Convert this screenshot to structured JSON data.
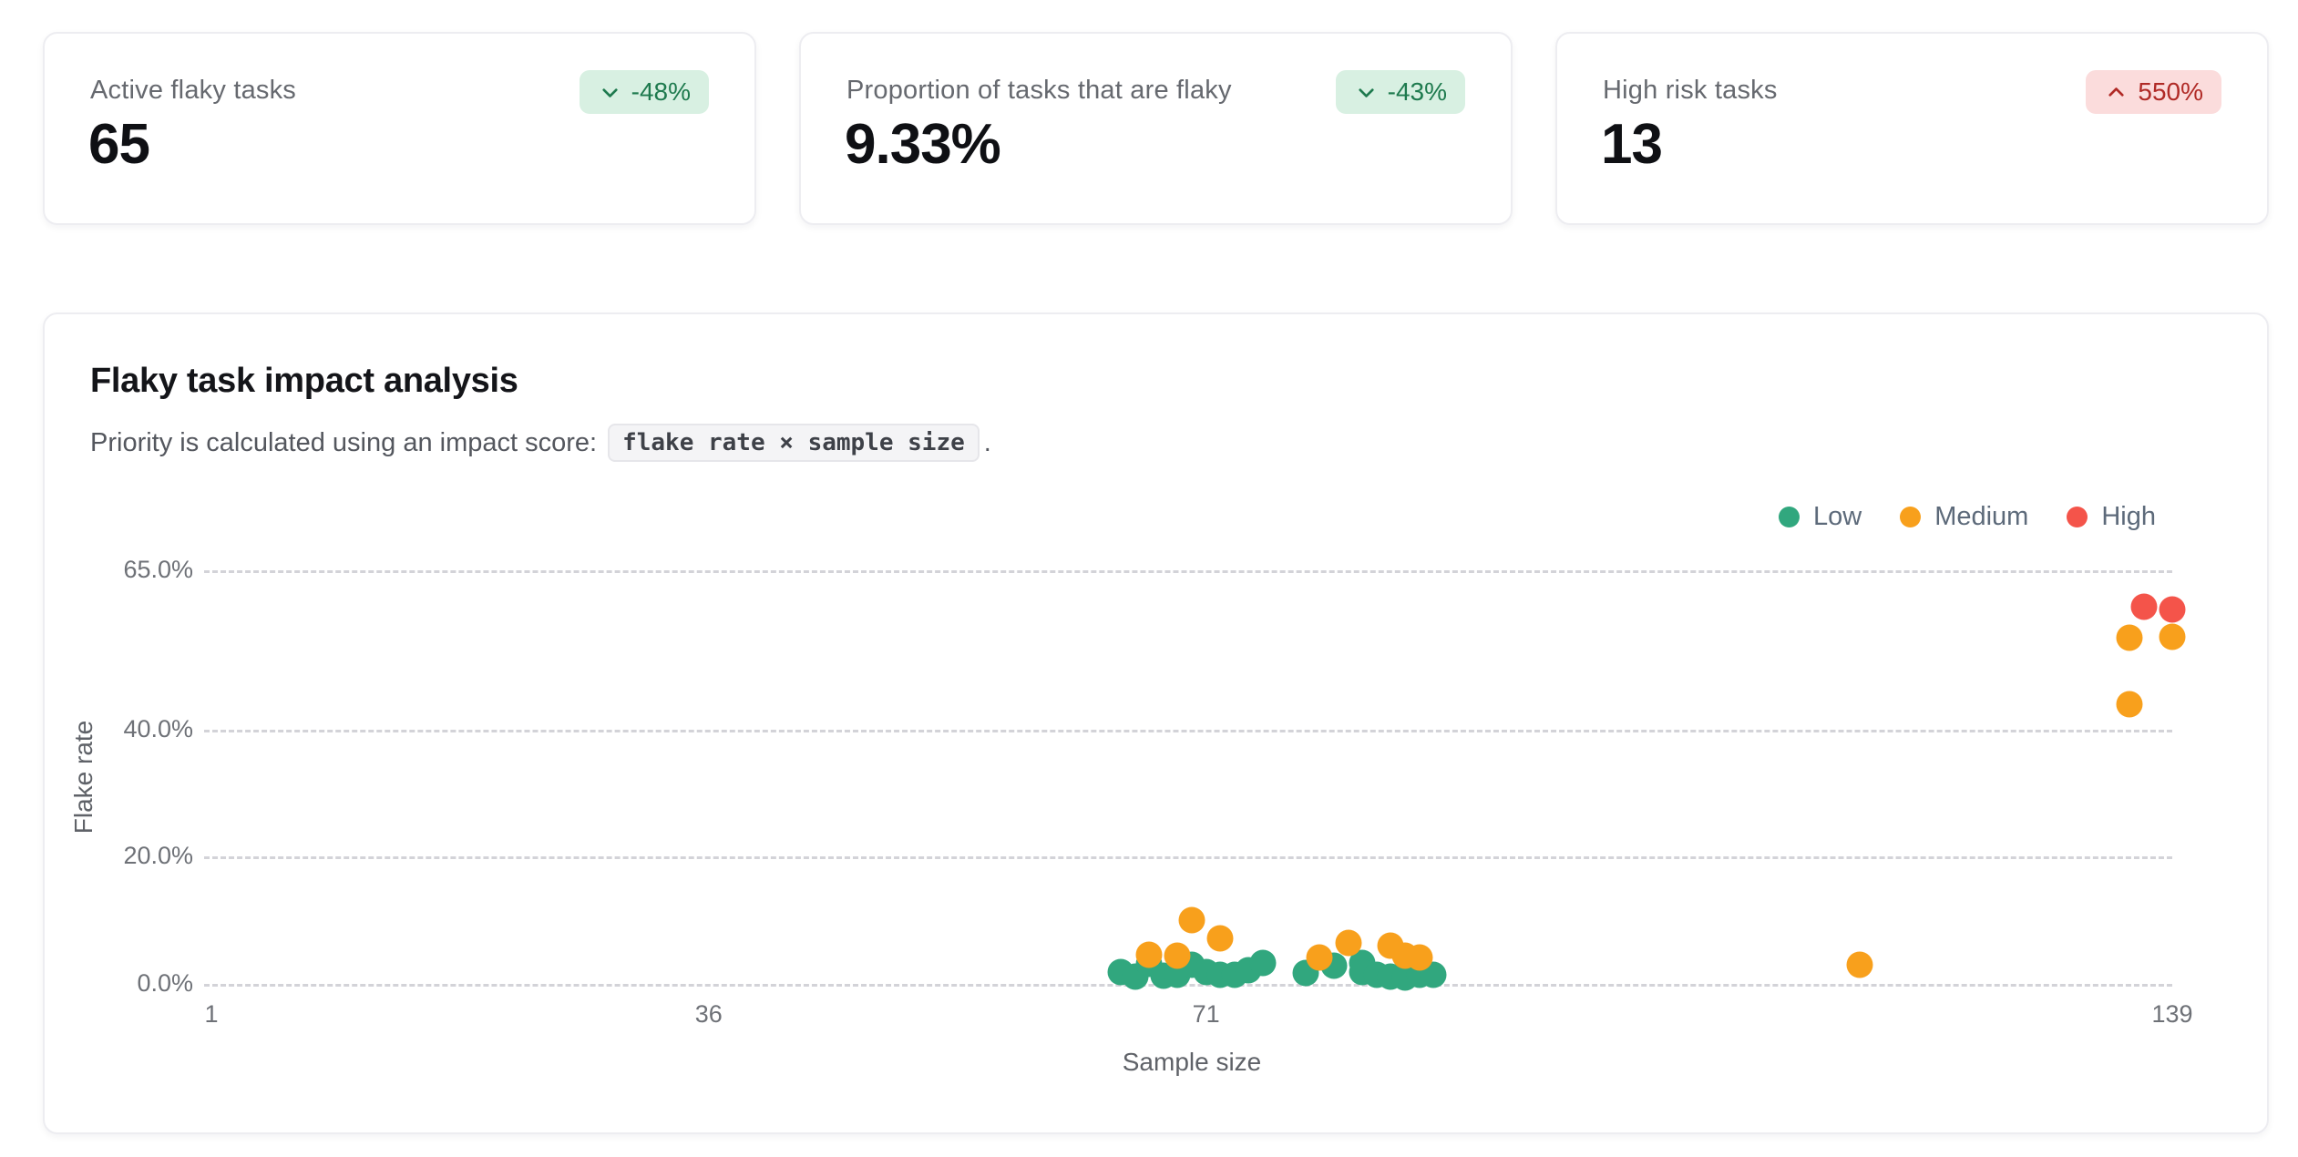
{
  "colors": {
    "low": "#31a77e",
    "medium": "#f8a01c",
    "high": "#f4544a",
    "badge_positive_bg": "#d8f0e2",
    "badge_positive_text": "#1e7a4e",
    "badge_negative_bg": "#fbdcdc",
    "badge_negative_text": "#b02a26",
    "grid": "#d3d3d8"
  },
  "stat_cards": [
    {
      "label": "Active flaky tasks",
      "value": "65",
      "badge": {
        "text": "-48%",
        "direction": "down",
        "sentiment": "positive"
      }
    },
    {
      "label": "Proportion of tasks that are flaky",
      "value": "9.33%",
      "badge": {
        "text": "-43%",
        "direction": "down",
        "sentiment": "positive"
      }
    },
    {
      "label": "High risk tasks",
      "value": "13",
      "badge": {
        "text": "550%",
        "direction": "up",
        "sentiment": "negative"
      }
    }
  ],
  "panel": {
    "title": "Flaky task impact analysis",
    "subtitle_prefix": "Priority is calculated using an impact score:",
    "subtitle_code": "flake rate × sample size",
    "subtitle_suffix": "."
  },
  "chart_data": {
    "type": "scatter",
    "title": "Flaky task impact analysis",
    "xlabel": "Sample size",
    "ylabel": "Flake rate",
    "xlim": [
      1,
      139
    ],
    "ylim": [
      0,
      65
    ],
    "grid": "dashed-horizontal",
    "legend_position": "top-right",
    "x_ticks": [
      {
        "value": 1,
        "label": "1"
      },
      {
        "value": 36,
        "label": "36"
      },
      {
        "value": 71,
        "label": "71"
      },
      {
        "value": 139,
        "label": "139"
      }
    ],
    "y_ticks": [
      {
        "value": 65,
        "label": "65.0%"
      },
      {
        "value": 40,
        "label": "40.0%"
      },
      {
        "value": 20,
        "label": "20.0%"
      },
      {
        "value": 0,
        "label": "0.0%"
      }
    ],
    "legend": [
      {
        "label": "Low",
        "color": "#31a77e"
      },
      {
        "label": "Medium",
        "color": "#f8a01c"
      },
      {
        "label": "High",
        "color": "#f4544a"
      }
    ],
    "series": [
      {
        "name": "Low",
        "color": "#31a77e",
        "points": [
          [
            65,
            1.8
          ],
          [
            66,
            1.2
          ],
          [
            67,
            3.2
          ],
          [
            68,
            1.3
          ],
          [
            69,
            1.5
          ],
          [
            70,
            3.0
          ],
          [
            71,
            1.8
          ],
          [
            72,
            1.5
          ],
          [
            73,
            1.5
          ],
          [
            74,
            2.2
          ],
          [
            75,
            3.3
          ],
          [
            78,
            1.7
          ],
          [
            80,
            2.9
          ],
          [
            82,
            3.3
          ],
          [
            82,
            1.8
          ],
          [
            83,
            1.4
          ],
          [
            84,
            1.2
          ],
          [
            85,
            1.0
          ],
          [
            86,
            1.4
          ],
          [
            87,
            1.5
          ]
        ]
      },
      {
        "name": "Medium",
        "color": "#f8a01c",
        "points": [
          [
            67,
            4.6
          ],
          [
            69,
            4.4
          ],
          [
            70,
            10.0
          ],
          [
            72,
            7.2
          ],
          [
            79,
            4.1
          ],
          [
            81,
            6.5
          ],
          [
            84,
            6.0
          ],
          [
            85,
            4.4
          ],
          [
            86,
            4.1
          ],
          [
            117,
            3.0
          ],
          [
            136,
            44.0
          ],
          [
            136,
            54.4
          ],
          [
            139,
            54.5
          ]
        ]
      },
      {
        "name": "High",
        "color": "#f4544a",
        "points": [
          [
            137,
            59.3
          ],
          [
            139,
            58.9
          ]
        ]
      }
    ]
  }
}
